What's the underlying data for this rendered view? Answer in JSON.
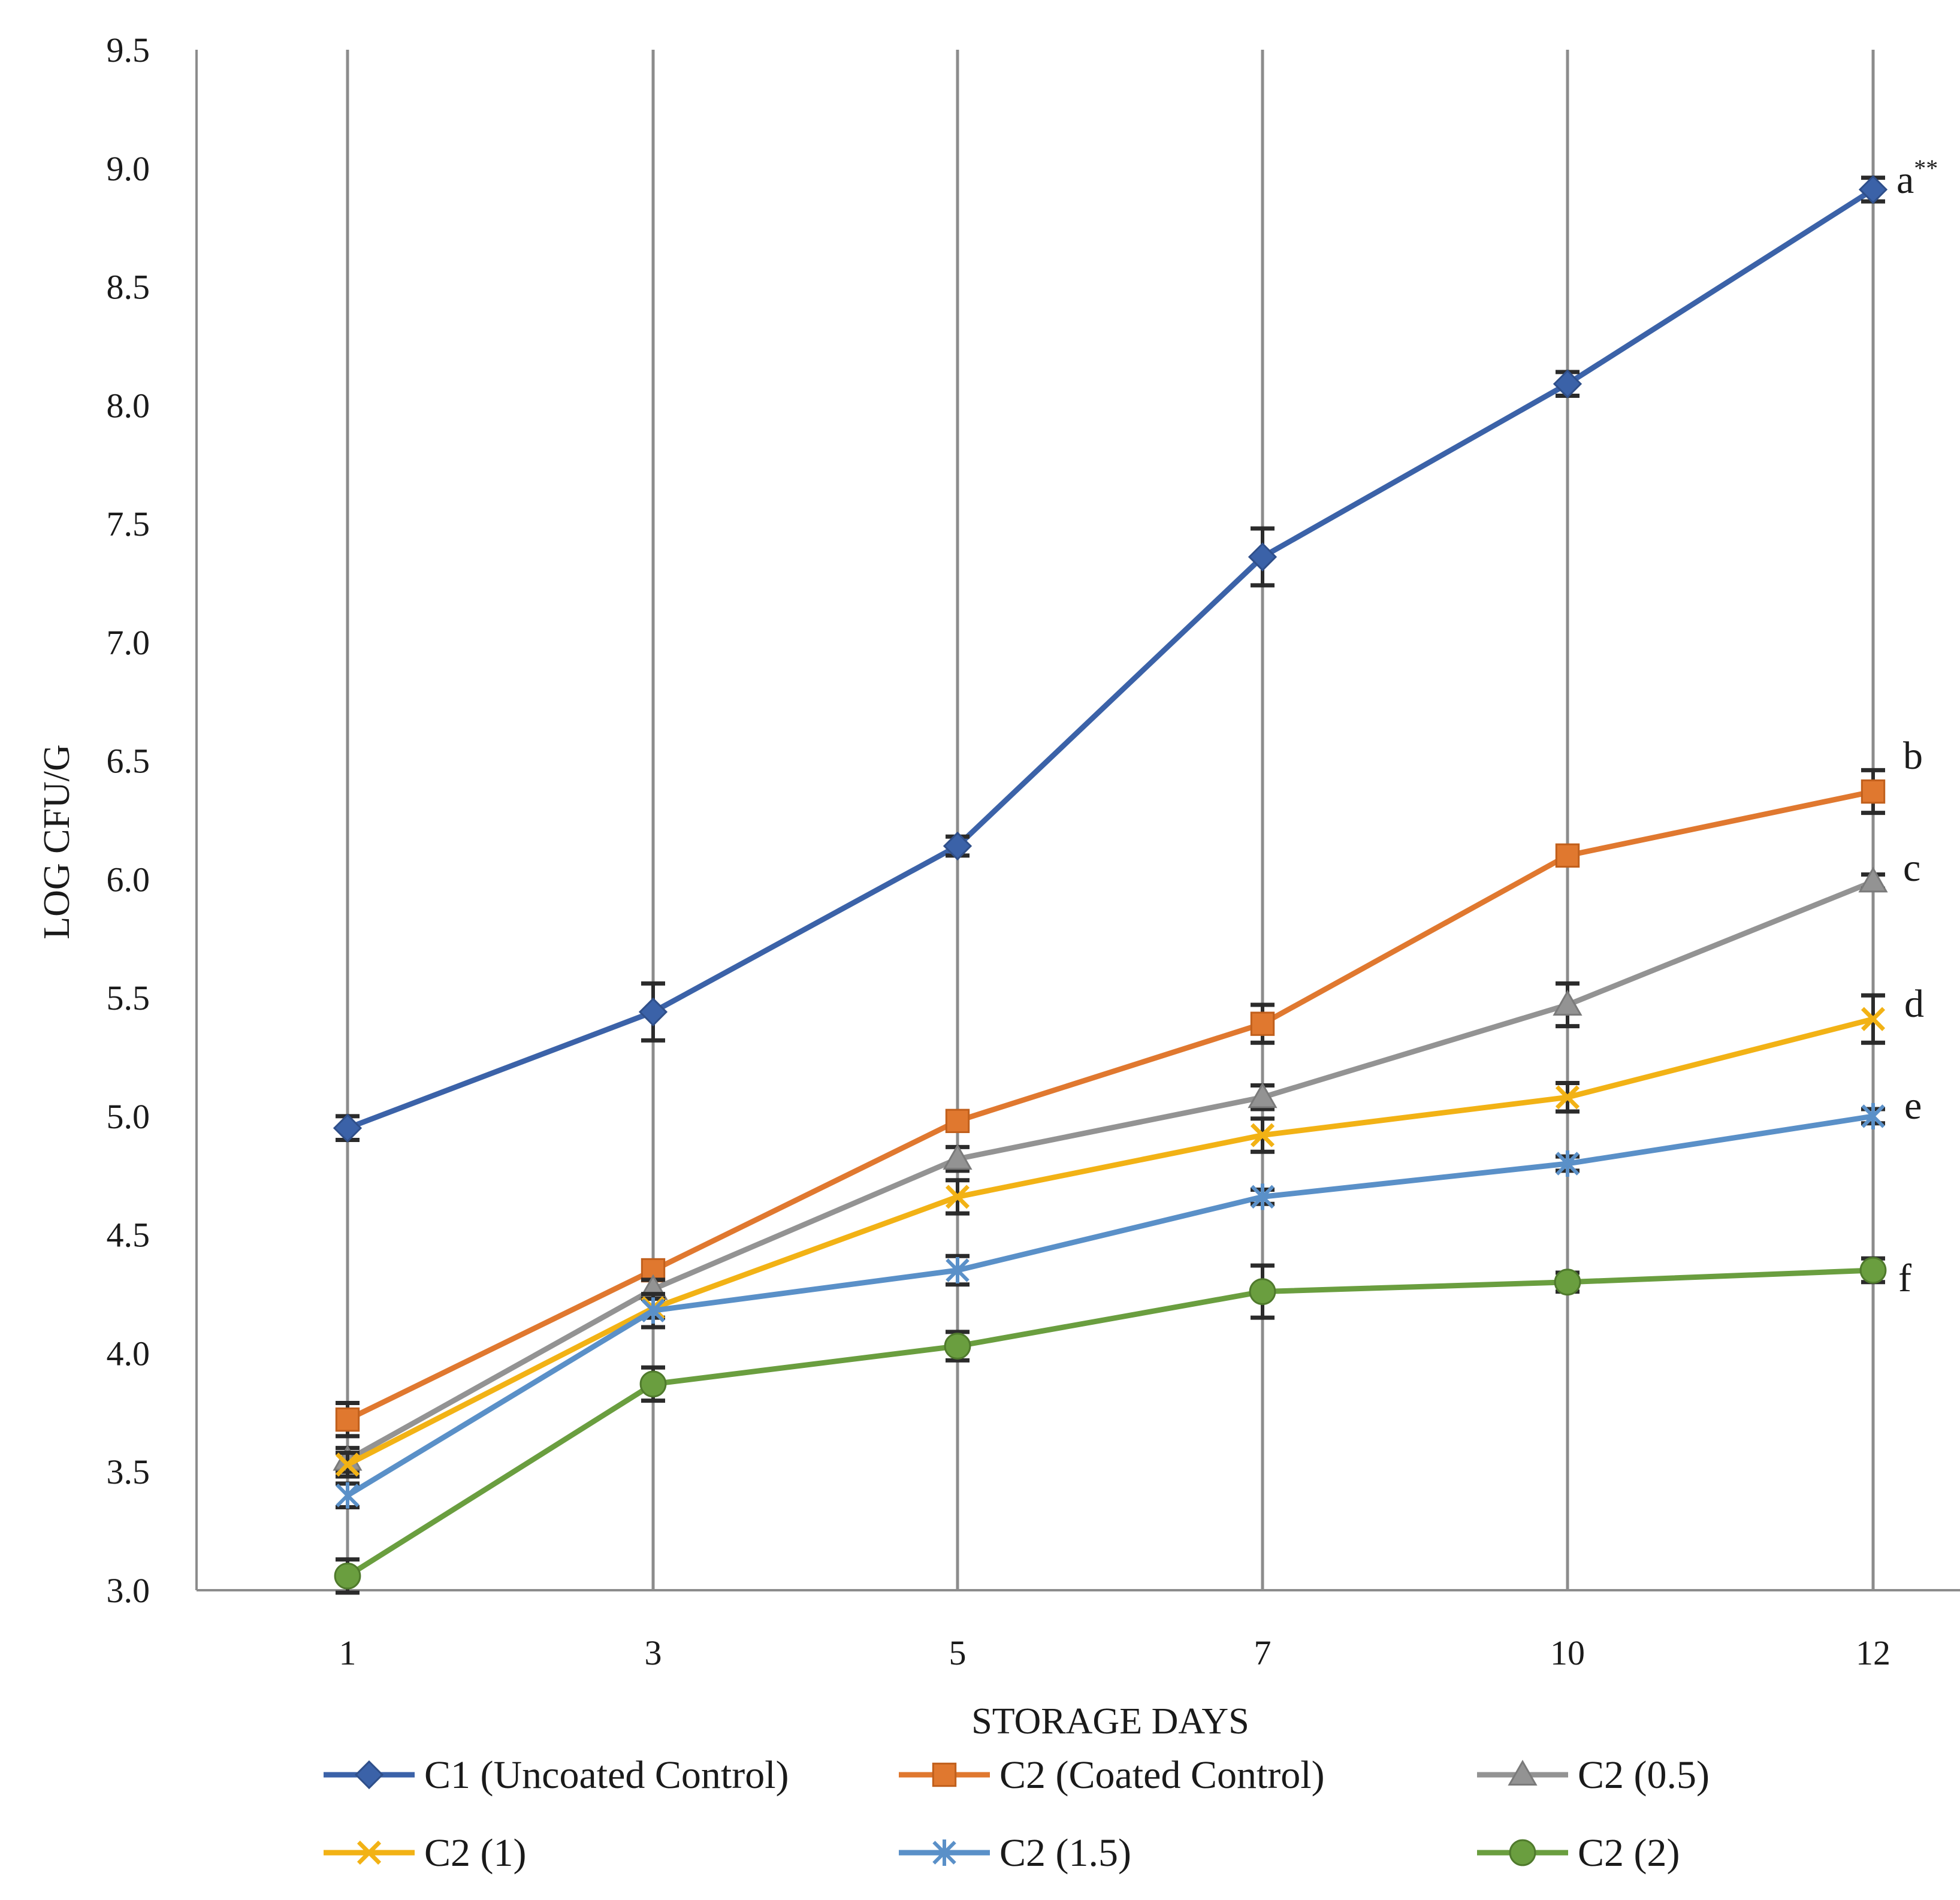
{
  "chart_data": {
    "type": "line",
    "title": "",
    "xlabel": "STORAGE DAYS",
    "ylabel": "LOG CFU/G",
    "x": [
      1,
      3,
      5,
      7,
      10,
      12
    ],
    "x_tick_labels": [
      "1",
      "3",
      "5",
      "7",
      "10",
      "12"
    ],
    "ylim": [
      3.0,
      9.5
    ],
    "y_tick_labels": [
      "3.0",
      "3.5",
      "4.0",
      "4.5",
      "5.0",
      "5.5",
      "6.0",
      "6.5",
      "7.0",
      "7.5",
      "8.0",
      "8.5",
      "9.0",
      "9.5"
    ],
    "grid": "vertical",
    "legend_position": "bottom",
    "series": [
      {
        "name": "C1 (Uncoated Control)",
        "color": "#3b62a8",
        "marker": "diamond",
        "values": [
          4.95,
          5.44,
          6.14,
          7.36,
          8.09,
          8.91
        ],
        "errors": [
          0.05,
          0.12,
          0.04,
          0.12,
          0.05,
          0.05
        ],
        "significance": "a**"
      },
      {
        "name": "C2 (Coated Control)",
        "color": "#e0782f",
        "marker": "square",
        "values": [
          3.72,
          4.35,
          4.98,
          5.39,
          6.1,
          6.37
        ],
        "errors": [
          0.07,
          0.04,
          0.03,
          0.08,
          0.03,
          0.09
        ],
        "significance": "b"
      },
      {
        "name": "C2 (0.5)",
        "color": "#939393",
        "marker": "triangle",
        "values": [
          3.55,
          4.27,
          4.82,
          5.08,
          5.47,
          5.99
        ],
        "errors": [
          0.05,
          0.04,
          0.05,
          0.05,
          0.09,
          0.03
        ],
        "significance": "c"
      },
      {
        "name": "C2 (1)",
        "color": "#f2b215",
        "marker": "x",
        "values": [
          3.53,
          4.19,
          4.66,
          4.92,
          5.08,
          5.41
        ],
        "errors": [
          0.05,
          0.04,
          0.07,
          0.07,
          0.06,
          0.1
        ],
        "significance": "d"
      },
      {
        "name": "C2 (1.5)",
        "color": "#5a90c8",
        "marker": "asterisk",
        "values": [
          3.4,
          4.18,
          4.35,
          4.66,
          4.8,
          5.0
        ],
        "errors": [
          0.05,
          0.07,
          0.06,
          0.03,
          0.03,
          0.03
        ],
        "significance": "e"
      },
      {
        "name": "C2 (2)",
        "color": "#6a9e3f",
        "marker": "circle",
        "values": [
          3.06,
          3.87,
          4.03,
          4.26,
          4.3,
          4.35
        ],
        "errors": [
          0.07,
          0.07,
          0.06,
          0.11,
          0.04,
          0.05
        ],
        "significance": "f"
      }
    ]
  }
}
